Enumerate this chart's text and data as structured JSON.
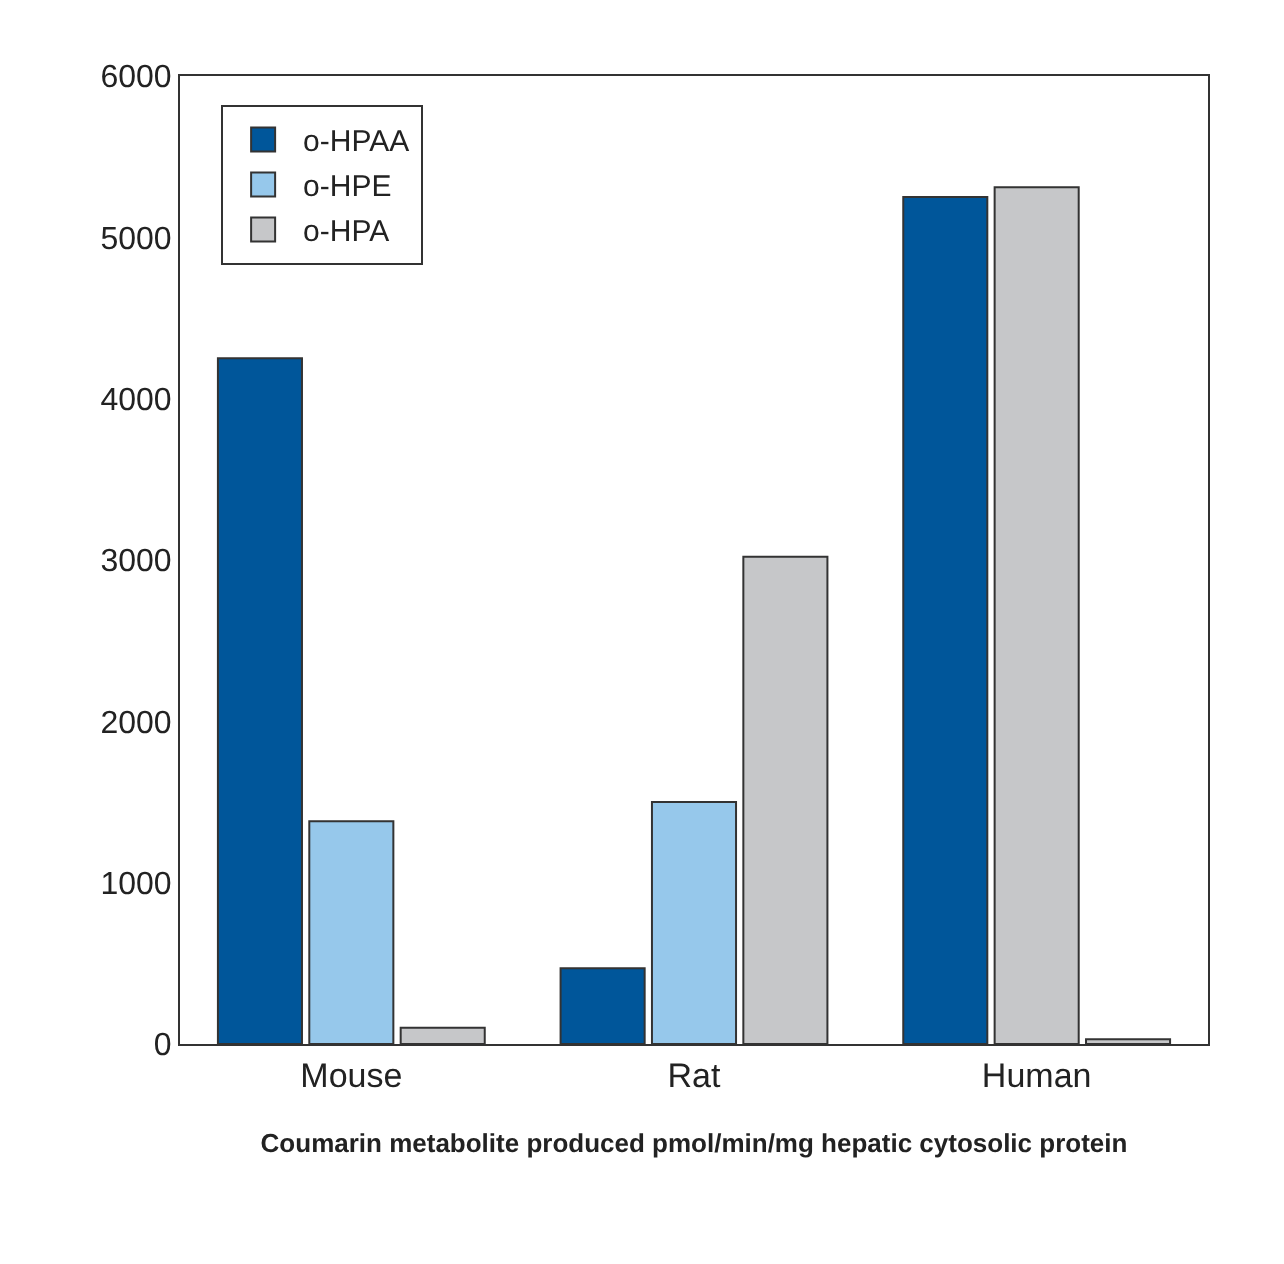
{
  "chart_data": {
    "type": "bar",
    "categories": [
      "Mouse",
      "Rat",
      "Human"
    ],
    "series": [
      {
        "name": "o-HPAA",
        "color": "#00569a",
        "values": [
          4250,
          470,
          5250
        ]
      },
      {
        "name": "o-HPE",
        "color": "#96c8eb",
        "colors": [
          "#96c8eb",
          "#96c8eb",
          "#c6c7c9"
        ],
        "values": [
          1380,
          1500,
          5310
        ]
      },
      {
        "name": "o-HPA",
        "color": "#c6c7c9",
        "values": [
          100,
          3020,
          30
        ]
      }
    ],
    "xlabel": "Coumarin metabolite produced pmol/min/mg hepatic cytosolic protein",
    "ylim": [
      0,
      6000
    ],
    "yticks": [
      0,
      1000,
      2000,
      3000,
      4000,
      5000,
      6000
    ],
    "legend": "top left"
  }
}
